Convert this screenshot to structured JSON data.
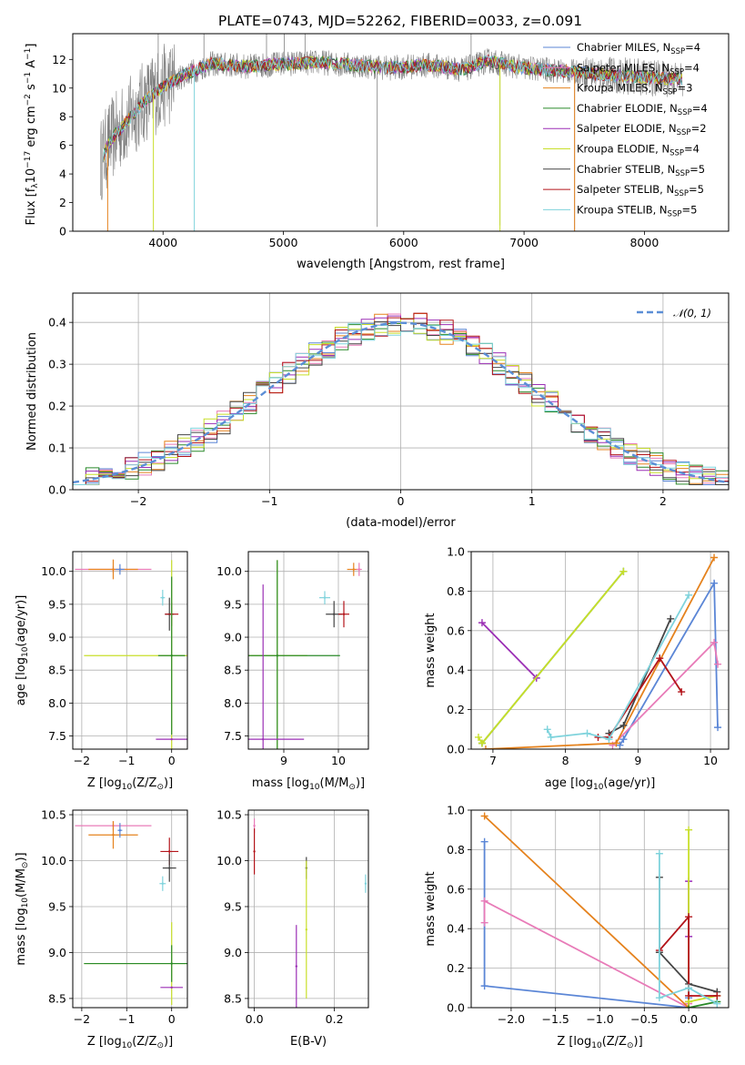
{
  "title": "PLATE=0743, MJD=52262, FIBERID=0033, z=0.091",
  "colors": {
    "Chabrier MILES": "#5b86d6",
    "Salpeter MILES": "#e87bb8",
    "Kroupa MILES": "#e5821d",
    "Chabrier ELODIE": "#2a8a2a",
    "Salpeter ELODIE": "#9b2fb5",
    "Kroupa ELODIE": "#c8df2a",
    "Chabrier STELIB": "#444444",
    "Salpeter STELIB": "#b3141a",
    "Kroupa STELIB": "#7fd3dc",
    "data": "#808080",
    "normal": "#5b8ed6"
  },
  "chart_data": [
    {
      "type": "line",
      "xlabel": "wavelength [Angstrom, rest frame]",
      "ylabel": "Flux [f",
      "ylabel_parts": [
        "Flux [f",
        "λ",
        "10",
        "−17",
        " erg cm",
        "−2",
        " s",
        "−1",
        " A",
        "−1",
        "]"
      ],
      "xlim": [
        3250,
        8700
      ],
      "ylim": [
        0,
        13.8
      ],
      "xticks": [
        4000,
        5000,
        6000,
        7000,
        8000
      ],
      "xtick_labels": [
        "4000",
        "5000",
        "6000",
        "7000",
        "8000"
      ],
      "yticks": [
        0,
        2,
        4,
        6,
        8,
        10,
        12
      ],
      "ytick_labels": [
        "0",
        "2",
        "4",
        "6",
        "8",
        "10",
        "12"
      ],
      "spectrum_range": [
        3480,
        8320
      ],
      "spectrum_continuum": [
        [
          3480,
          4.9
        ],
        [
          3560,
          6.3
        ],
        [
          3700,
          7.7
        ],
        [
          3850,
          9.1
        ],
        [
          4000,
          10.1
        ],
        [
          4200,
          11.0
        ],
        [
          4400,
          11.7
        ],
        [
          4700,
          11.5
        ],
        [
          5000,
          11.7
        ],
        [
          5300,
          11.8
        ],
        [
          5600,
          11.6
        ],
        [
          5900,
          11.4
        ],
        [
          6200,
          11.6
        ],
        [
          6500,
          11.3
        ],
        [
          6700,
          11.9
        ],
        [
          7000,
          11.4
        ],
        [
          7300,
          11.2
        ],
        [
          7600,
          11.0
        ],
        [
          7900,
          10.8
        ],
        [
          8320,
          10.6
        ]
      ],
      "spikes": [
        [
          3960,
          14
        ],
        [
          4340,
          14
        ],
        [
          4860,
          14
        ],
        [
          5007,
          14
        ],
        [
          5180,
          13.8
        ],
        [
          5780,
          0.3
        ],
        [
          6560,
          13.8
        ],
        [
          6800,
          0.4
        ],
        [
          7420,
          0
        ]
      ],
      "legend": [
        {
          "label": "Chabrier MILES, N",
          "sub": "SSP",
          "tail": "=4",
          "color": "#5b86d6"
        },
        {
          "label": "Salpeter MILES, N",
          "sub": "SSP",
          "tail": "=4",
          "color": "#e87bb8"
        },
        {
          "label": "Kroupa MILES, N",
          "sub": "SSP",
          "tail": "=3",
          "color": "#e5821d"
        },
        {
          "label": "Chabrier ELODIE, N",
          "sub": "SSP",
          "tail": "=4",
          "color": "#2a8a2a"
        },
        {
          "label": "Salpeter ELODIE, N",
          "sub": "SSP",
          "tail": "=2",
          "color": "#9b2fb5"
        },
        {
          "label": "Kroupa ELODIE, N",
          "sub": "SSP",
          "tail": "=4",
          "color": "#c8df2a"
        },
        {
          "label": "Chabrier STELIB, N",
          "sub": "SSP",
          "tail": "=5",
          "color": "#444444"
        },
        {
          "label": "Salpeter STELIB, N",
          "sub": "SSP",
          "tail": "=5",
          "color": "#b3141a"
        },
        {
          "label": "Kroupa STELIB, N",
          "sub": "SSP",
          "tail": "=5",
          "color": "#7fd3dc"
        }
      ]
    },
    {
      "type": "histogram",
      "xlabel": "(data-model)/error",
      "ylabel": "Normed distribution",
      "xlim": [
        -2.5,
        2.5
      ],
      "ylim": [
        0,
        0.47
      ],
      "xticks": [
        -2,
        -1,
        0,
        1,
        2
      ],
      "xtick_labels": [
        "−2",
        "−1",
        "0",
        "1",
        "2"
      ],
      "yticks": [
        0,
        0.1,
        0.2,
        0.3,
        0.4
      ],
      "ytick_labels": [
        "0.0",
        "0.1",
        "0.2",
        "0.3",
        "0.4"
      ],
      "bin_width": 0.1,
      "legend": [
        {
          "label": "𝒩(0, 1)",
          "color": "#5b8ed6",
          "style": "dashed"
        }
      ]
    },
    {
      "type": "scatter",
      "xlabel": "Z [log",
      "xlabel_parts": [
        "Z [log",
        "10",
        "(Z/Z",
        "⊙",
        ")]"
      ],
      "ylabel_parts": [
        "age  [log",
        "10",
        "(age/yr)]"
      ],
      "xlim": [
        -2.2,
        0.35
      ],
      "ylim": [
        7.3,
        10.3
      ],
      "xticks": [
        -2,
        -1,
        0
      ],
      "xtick_labels": [
        "−2",
        "−1",
        "0"
      ],
      "yticks": [
        7.5,
        8.0,
        8.5,
        9.0,
        9.5,
        10.0
      ],
      "ytick_labels": [
        "7.5",
        "8.0",
        "8.5",
        "9.0",
        "9.5",
        "10.0"
      ],
      "points": [
        {
          "model": "Salpeter MILES",
          "x": -1.3,
          "y": 10.03,
          "xerr": 0.85,
          "yerr": 0.05
        },
        {
          "model": "Kroupa MILES",
          "x": -1.3,
          "y": 10.03,
          "xerr": 0.55,
          "yerr": 0.15
        },
        {
          "model": "Chabrier MILES",
          "x": -1.15,
          "y": 10.03,
          "xerr": 0.1,
          "yerr": 0.08
        },
        {
          "model": "Kroupa STELIB",
          "x": -0.2,
          "y": 9.6,
          "xerr": 0.05,
          "yerr": 0.12
        },
        {
          "model": "Chabrier STELIB",
          "x": -0.05,
          "y": 9.35,
          "xerr": 0.1,
          "yerr": 0.25
        },
        {
          "model": "Salpeter STELIB",
          "x": 0.0,
          "y": 9.35,
          "xerr": 0.15,
          "yerr": 0.18
        },
        {
          "model": "Kroupa ELODIE",
          "x": 0.0,
          "y": 8.72,
          "xerr": 1.95,
          "yerr": 1.45
        },
        {
          "model": "Chabrier ELODIE",
          "x": 0.0,
          "y": 8.72,
          "xerr": 0.3,
          "yerr": 1.2
        },
        {
          "model": "Salpeter ELODIE",
          "x": 0.0,
          "y": 7.45,
          "xerr": 0.35,
          "yerr": 0.0
        }
      ]
    },
    {
      "type": "scatter",
      "xlabel_parts": [
        "mass [log",
        "10",
        "(M/M",
        "⊙",
        ")]"
      ],
      "xlim": [
        8.35,
        10.55
      ],
      "ylim": [
        7.3,
        10.3
      ],
      "xticks": [
        9,
        10
      ],
      "xtick_labels": [
        "9",
        "10"
      ],
      "yticks": [
        7.5,
        8.0,
        8.5,
        9.0,
        9.5,
        10.0
      ],
      "ytick_labels": [
        "7.5",
        "8.0",
        "8.5",
        "9.0",
        "9.5",
        "10.0"
      ],
      "points": [
        {
          "model": "Kroupa MILES",
          "x": 10.28,
          "y": 10.03,
          "xerr": 0.12,
          "yerr": 0.1
        },
        {
          "model": "Salpeter MILES",
          "x": 10.38,
          "y": 10.03,
          "xerr": 0.05,
          "yerr": 0.1
        },
        {
          "model": "Kroupa STELIB",
          "x": 9.75,
          "y": 9.6,
          "xerr": 0.1,
          "yerr": 0.1
        },
        {
          "model": "Chabrier STELIB",
          "x": 9.92,
          "y": 9.35,
          "xerr": 0.15,
          "yerr": 0.2
        },
        {
          "model": "Salpeter STELIB",
          "x": 10.1,
          "y": 9.35,
          "xerr": 0.1,
          "yerr": 0.2
        },
        {
          "model": "Kroupa ELODIE",
          "x": 8.88,
          "y": 8.72,
          "xerr": 0.55,
          "yerr": 1.45
        },
        {
          "model": "Chabrier ELODIE",
          "x": 8.88,
          "y": 8.72,
          "xerr": 1.15,
          "yerr": 1.45
        },
        {
          "model": "Salpeter ELODIE",
          "x": 8.62,
          "y": 7.45,
          "xerr": 0.75,
          "yerr": 2.35
        }
      ]
    },
    {
      "type": "line",
      "xlabel_parts": [
        "age  [log",
        "10",
        "(age/yr)]"
      ],
      "ylabel": "mass weight",
      "xlim": [
        6.7,
        10.25
      ],
      "ylim": [
        0,
        1
      ],
      "xticks": [
        7,
        8,
        9,
        10
      ],
      "xtick_labels": [
        "7",
        "8",
        "9",
        "10"
      ],
      "yticks": [
        0,
        0.2,
        0.4,
        0.6,
        0.8,
        1.0
      ],
      "ytick_labels": [
        "0.0",
        "0.2",
        "0.4",
        "0.6",
        "0.8",
        "1.0"
      ],
      "series": [
        {
          "model": "Chabrier MILES",
          "x": [
            8.75,
            8.8,
            10.05,
            10.1
          ],
          "y": [
            0.02,
            0.05,
            0.84,
            0.11
          ]
        },
        {
          "model": "Salpeter MILES",
          "x": [
            8.65,
            10.05,
            10.1
          ],
          "y": [
            0.02,
            0.54,
            0.43
          ]
        },
        {
          "model": "Kroupa MILES",
          "x": [
            6.9,
            8.7,
            10.05
          ],
          "y": [
            0.0,
            0.03,
            0.97
          ]
        },
        {
          "model": "Chabrier ELODIE",
          "x": [
            6.85,
            8.8
          ],
          "y": [
            0.03,
            0.9
          ]
        },
        {
          "model": "Salpeter ELODIE",
          "x": [
            6.85,
            7.6
          ],
          "y": [
            0.64,
            0.36
          ]
        },
        {
          "model": "Kroupa ELODIE",
          "x": [
            6.8,
            6.85,
            8.8
          ],
          "y": [
            0.06,
            0.03,
            0.9
          ]
        },
        {
          "model": "Chabrier STELIB",
          "x": [
            8.6,
            8.8,
            9.45
          ],
          "y": [
            0.08,
            0.12,
            0.66
          ]
        },
        {
          "model": "Salpeter STELIB",
          "x": [
            8.45,
            8.6,
            9.3,
            9.6
          ],
          "y": [
            0.06,
            0.06,
            0.46,
            0.29
          ]
        },
        {
          "model": "Kroupa STELIB",
          "x": [
            7.75,
            7.8,
            8.3,
            8.6,
            9.7
          ],
          "y": [
            0.1,
            0.06,
            0.08,
            0.05,
            0.78
          ]
        }
      ]
    },
    {
      "type": "scatter",
      "xlabel_parts": [
        "Z [log",
        "10",
        "(Z/Z",
        "⊙",
        ")]"
      ],
      "ylabel_parts": [
        "mass [log",
        "10",
        "(M/M",
        "⊙",
        ")]"
      ],
      "xlim": [
        -2.2,
        0.35
      ],
      "ylim": [
        8.4,
        10.55
      ],
      "xticks": [
        -2,
        -1,
        0
      ],
      "xtick_labels": [
        "−2",
        "−1",
        "0"
      ],
      "yticks": [
        8.5,
        9.0,
        9.5,
        10.0,
        10.5
      ],
      "ytick_labels": [
        "8.5",
        "9.0",
        "9.5",
        "10.0",
        "10.5"
      ],
      "points": [
        {
          "model": "Salpeter MILES",
          "x": -1.3,
          "y": 10.38,
          "xerr": 0.85,
          "yerr": 0.05
        },
        {
          "model": "Kroupa MILES",
          "x": -1.3,
          "y": 10.28,
          "xerr": 0.55,
          "yerr": 0.15
        },
        {
          "model": "Chabrier MILES",
          "x": -1.15,
          "y": 10.33,
          "xerr": 0.05,
          "yerr": 0.08
        },
        {
          "model": "Salpeter STELIB",
          "x": -0.05,
          "y": 10.1,
          "xerr": 0.2,
          "yerr": 0.15
        },
        {
          "model": "Chabrier STELIB",
          "x": -0.05,
          "y": 9.92,
          "xerr": 0.15,
          "yerr": 0.15
        },
        {
          "model": "Kroupa STELIB",
          "x": -0.2,
          "y": 9.75,
          "xerr": 0.07,
          "yerr": 0.08
        },
        {
          "model": "Kroupa ELODIE",
          "x": 0.0,
          "y": 8.88,
          "xerr": 1.95,
          "yerr": 0.45
        },
        {
          "model": "Chabrier ELODIE",
          "x": 0.0,
          "y": 8.88,
          "xerr": 1.95,
          "yerr": 0.2
        },
        {
          "model": "Salpeter ELODIE",
          "x": 0.0,
          "y": 8.62,
          "xerr": 0.25,
          "yerr": 0.0
        }
      ]
    },
    {
      "type": "scatter",
      "xlabel": "E(B-V)",
      "xlim": [
        -0.015,
        0.285
      ],
      "ylim": [
        8.4,
        10.55
      ],
      "xticks": [
        0.0,
        0.2
      ],
      "xtick_labels": [
        "0.0",
        "0.2"
      ],
      "yticks": [
        8.5,
        9.0,
        9.5,
        10.0,
        10.5
      ],
      "ytick_labels": [
        "8.5",
        "9.0",
        "9.5",
        "10.0",
        "10.5"
      ],
      "points": [
        {
          "model": "Salpeter MILES",
          "x": 0.0,
          "y": 10.38,
          "xerr": 0.0,
          "yerr": 0.08
        },
        {
          "model": "Salpeter STELIB",
          "x": 0.0,
          "y": 10.1,
          "xerr": 0.0,
          "yerr": 0.25
        },
        {
          "model": "Chabrier STELIB",
          "x": 0.13,
          "y": 9.92,
          "xerr": 0.0,
          "yerr": 0.12
        },
        {
          "model": "Kroupa STELIB",
          "x": 0.278,
          "y": 9.75,
          "xerr": 0.0,
          "yerr": 0.1
        },
        {
          "model": "Kroupa ELODIE",
          "x": 0.13,
          "y": 9.25,
          "xerr": 0.0,
          "yerr": 0.75
        },
        {
          "model": "Salpeter ELODIE",
          "x": 0.105,
          "y": 8.85,
          "xerr": 0.0,
          "yerr": 0.45
        }
      ]
    },
    {
      "type": "line",
      "xlabel_parts": [
        "Z [log",
        "10",
        "(Z/Z",
        "⊙",
        ")]"
      ],
      "ylabel": "mass weight",
      "xlim": [
        -2.45,
        0.45
      ],
      "ylim": [
        0,
        1
      ],
      "xticks": [
        -2.0,
        -1.5,
        -1.0,
        -0.5,
        0.0
      ],
      "xtick_labels": [
        "−2.0",
        "−1.5",
        "−1.0",
        "−0.5",
        "0.0"
      ],
      "yticks": [
        0,
        0.2,
        0.4,
        0.6,
        0.8,
        1.0
      ],
      "ytick_labels": [
        "0.0",
        "0.2",
        "0.4",
        "0.6",
        "0.8",
        "1.0"
      ],
      "series": [
        {
          "model": "Chabrier MILES",
          "x": [
            -2.3,
            -2.3,
            0.0,
            0.0
          ],
          "y": [
            0.84,
            0.11,
            0.0,
            0.05
          ]
        },
        {
          "model": "Salpeter MILES",
          "x": [
            -2.3,
            -2.3,
            0.0,
            0.0
          ],
          "y": [
            0.43,
            0.54,
            0.0,
            0.02
          ]
        },
        {
          "model": "Kroupa MILES",
          "x": [
            -2.3,
            0.0,
            0.0
          ],
          "y": [
            0.97,
            0.0,
            0.03
          ]
        },
        {
          "model": "Chabrier ELODIE",
          "x": [
            0.0,
            0.32
          ],
          "y": [
            0.0,
            0.03
          ]
        },
        {
          "model": "Salpeter ELODIE",
          "x": [
            0.0,
            0.0
          ],
          "y": [
            0.64,
            0.36
          ]
        },
        {
          "model": "Kroupa ELODIE",
          "x": [
            0.0,
            0.0,
            0.32
          ],
          "y": [
            0.9,
            0.03,
            0.06
          ]
        },
        {
          "model": "Chabrier STELIB",
          "x": [
            -0.33,
            -0.33,
            0.0,
            0.32
          ],
          "y": [
            0.66,
            0.28,
            0.12,
            0.08
          ]
        },
        {
          "model": "Salpeter STELIB",
          "x": [
            -0.33,
            0.0,
            0.0,
            0.32
          ],
          "y": [
            0.29,
            0.46,
            0.06,
            0.06
          ]
        },
        {
          "model": "Kroupa STELIB",
          "x": [
            -0.33,
            -0.33,
            0.0,
            0.32
          ],
          "y": [
            0.78,
            0.05,
            0.1,
            0.02
          ]
        }
      ]
    }
  ]
}
